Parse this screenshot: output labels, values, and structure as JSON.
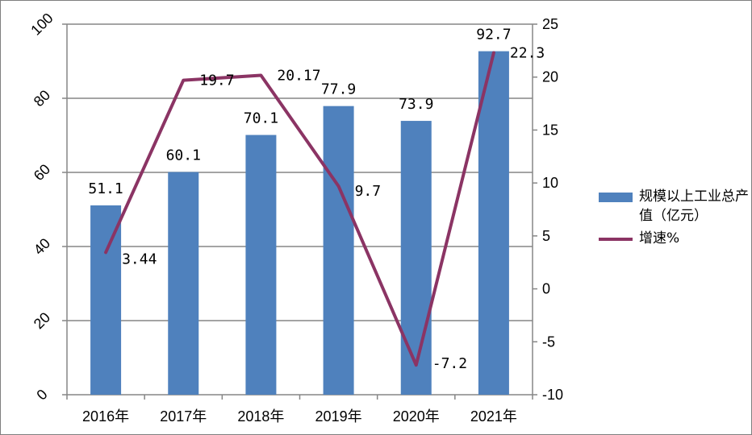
{
  "chart_data": {
    "type": "bar",
    "categories": [
      "2016年",
      "2017年",
      "2018年",
      "2019年",
      "2020年",
      "2021年"
    ],
    "series": [
      {
        "name": "规模以上工业总产值（亿元）",
        "type": "bar",
        "axis": "left",
        "values": [
          51.1,
          60.1,
          70.1,
          77.9,
          73.9,
          92.7
        ],
        "labels": [
          "51.1",
          "60.1",
          "70.1",
          "77.9",
          "73.9",
          "92.7"
        ]
      },
      {
        "name": "增速%",
        "type": "line",
        "axis": "right",
        "values": [
          3.44,
          19.7,
          20.17,
          9.7,
          -7.2,
          22.3
        ],
        "labels": [
          "3.44",
          "19.7",
          "20.17",
          "9.7",
          "-7.2",
          "22.3"
        ]
      }
    ],
    "left_axis": {
      "ylim": [
        0,
        100
      ],
      "ticks": [
        "0",
        "20",
        "40",
        "60",
        "80",
        "100"
      ]
    },
    "right_axis": {
      "ylim": [
        -10,
        25
      ],
      "ticks": [
        "-10",
        "-5",
        "0",
        "5",
        "10",
        "15",
        "20",
        "25"
      ]
    },
    "grid": true,
    "legend": "right",
    "colors": {
      "bar": "#4f81bd",
      "line": "#8b3464",
      "grid": "#868686",
      "axis": "#868686"
    }
  }
}
